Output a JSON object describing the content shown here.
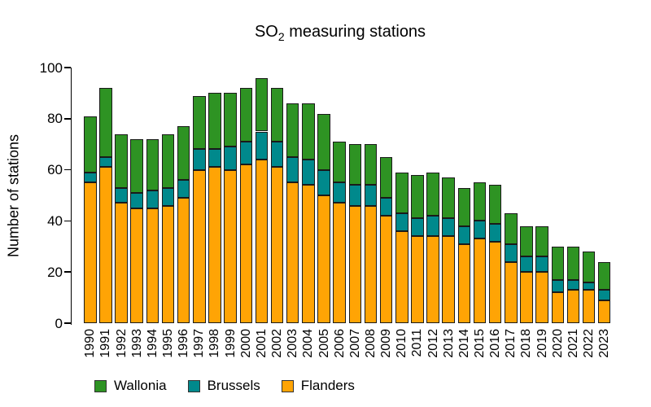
{
  "title": {
    "prefix": "SO",
    "subscript": "2",
    "suffix": " measuring stations"
  },
  "ylabel": "Number of stations",
  "legend": {
    "items": [
      {
        "label": "Wallonia",
        "color": "#2E9323"
      },
      {
        "label": "Brussels",
        "color": "#00898C"
      },
      {
        "label": "Flanders",
        "color": "#FFA405"
      }
    ]
  },
  "chart_data": {
    "type": "bar",
    "stacked": true,
    "title": "SO2 measuring stations",
    "xlabel": "",
    "ylabel": "Number of stations",
    "ylim": [
      0,
      100
    ],
    "yticks": [
      0,
      20,
      40,
      60,
      80,
      100
    ],
    "grid": false,
    "legend_position": "bottom-left",
    "legend_order": [
      "Wallonia",
      "Brussels",
      "Flanders"
    ],
    "bar_border_color": "#1a1a1a",
    "categories": [
      1990,
      1991,
      1992,
      1993,
      1994,
      1995,
      1996,
      1997,
      1998,
      1999,
      2000,
      2001,
      2002,
      2003,
      2004,
      2005,
      2006,
      2007,
      2008,
      2009,
      2010,
      2011,
      2012,
      2013,
      2014,
      2015,
      2016,
      2017,
      2018,
      2019,
      2020,
      2021,
      2022,
      2023
    ],
    "series": [
      {
        "name": "Flanders",
        "color": "#FFA405",
        "values": [
          55,
          61,
          47,
          45,
          45,
          46,
          49,
          60,
          61,
          60,
          62,
          64,
          61,
          55,
          54,
          50,
          47,
          46,
          46,
          42,
          36,
          34,
          34,
          34,
          31,
          33,
          32,
          24,
          20,
          20,
          12,
          13,
          13,
          9
        ]
      },
      {
        "name": "Brussels",
        "color": "#00898C",
        "values": [
          4,
          4,
          6,
          6,
          7,
          7,
          7,
          8,
          7,
          9,
          9,
          11,
          10,
          10,
          10,
          10,
          8,
          8,
          8,
          7,
          7,
          7,
          8,
          7,
          7,
          7,
          7,
          7,
          6,
          6,
          5,
          4,
          3,
          4
        ]
      },
      {
        "name": "Wallonia",
        "color": "#2E9323",
        "values": [
          22,
          27,
          21,
          21,
          20,
          21,
          21,
          21,
          22,
          21,
          21,
          21,
          21,
          21,
          22,
          22,
          16,
          16,
          16,
          16,
          16,
          17,
          17,
          16,
          15,
          15,
          15,
          12,
          12,
          12,
          13,
          13,
          12,
          11
        ]
      }
    ],
    "totals": [
      81,
      92,
      74,
      72,
      72,
      74,
      77,
      89,
      90,
      90,
      92,
      96,
      92,
      86,
      86,
      82,
      71,
      70,
      70,
      65,
      59,
      58,
      59,
      57,
      53,
      55,
      54,
      43,
      38,
      38,
      30,
      30,
      28,
      24
    ]
  }
}
